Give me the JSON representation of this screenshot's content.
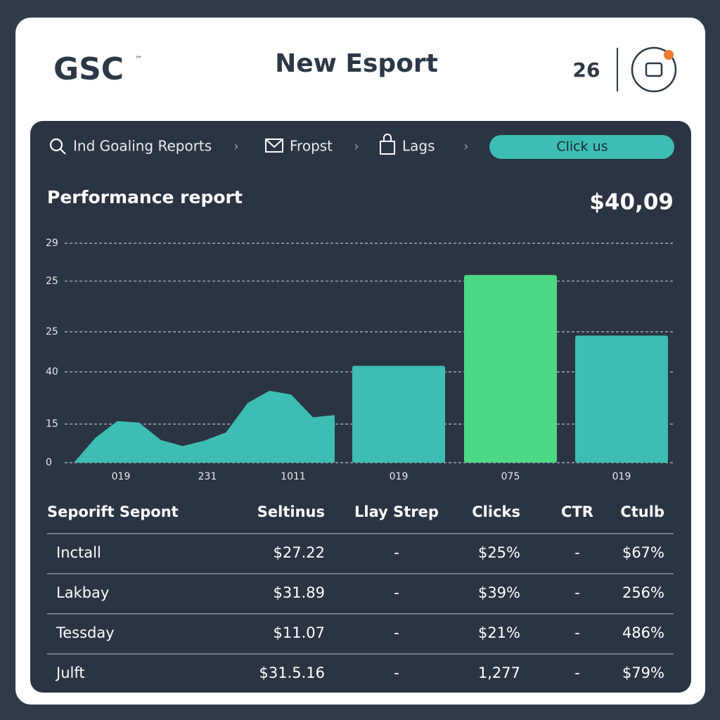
{
  "header": {
    "logo": "GSC",
    "logo_mark": "™",
    "title": "New Esport",
    "count": "26"
  },
  "nav": {
    "items": [
      "Ind Goaling Reports",
      "Fropst",
      "Lags"
    ],
    "button": "Click us"
  },
  "report": {
    "title": "Performance report",
    "total": "$40,09"
  },
  "chart_data": {
    "type": "bar",
    "categories": [
      "019",
      "231",
      "1011",
      "019",
      "075",
      "019"
    ],
    "values": [
      null,
      null,
      null,
      12.8,
      24.8,
      16.8
    ],
    "area": [
      0,
      3.3,
      5.5,
      5.3,
      3.0,
      2.2,
      2.9,
      4.0,
      7.9,
      9.5,
      9.0,
      6.0,
      6.3
    ],
    "color": "#3dbdb3",
    "accent": {
      "index": 4,
      "color": "#4cd882"
    },
    "ylim": [
      0,
      29
    ],
    "yticks": [
      0,
      {
        "value": 5.1,
        "label": "15"
      },
      {
        "value": 12,
        "label": "40"
      },
      {
        "value": 17.3,
        "label": "25"
      },
      {
        "value": 24,
        "label": "25"
      },
      29
    ],
    "grid": true
  },
  "table": {
    "columns": [
      "Seporift Sepont",
      "Seltinus",
      "Llay Strep",
      "Clicks",
      "CTR",
      "Ctulb"
    ],
    "rows": [
      [
        "Inctall",
        "$27.22",
        "-",
        "$25%",
        "-",
        "$67%"
      ],
      [
        "Lakbay",
        "$31.89",
        "-",
        "$39%",
        "-",
        "256%"
      ],
      [
        "Tessday",
        "$11.07",
        "-",
        "$21%",
        "-",
        "486%"
      ],
      [
        "Julft",
        "$31.5.16",
        "-",
        "1,277",
        "-",
        "$79%"
      ]
    ]
  }
}
